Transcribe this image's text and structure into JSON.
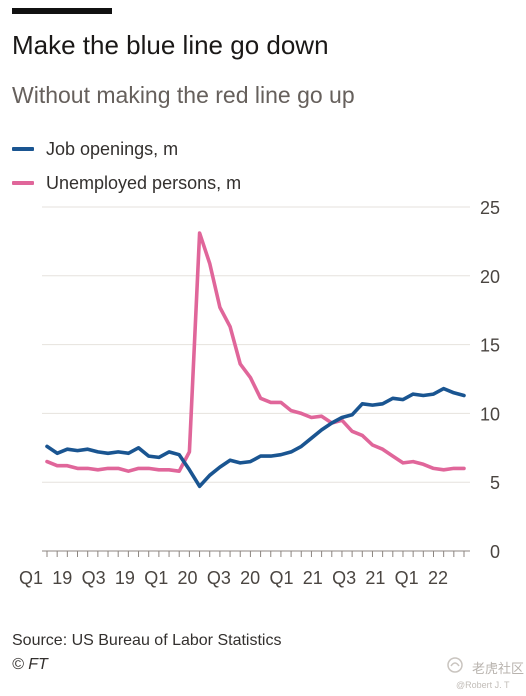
{
  "title": "Make the blue line go down",
  "subtitle": "Without making the red line go up",
  "source": "Source: US Bureau of Labor Statistics",
  "credit": "© FT",
  "watermark": {
    "text": "老虎社区",
    "sub": "@Robert J. T"
  },
  "colors": {
    "job_openings": "#1a5591",
    "unemployed": "#e0669a",
    "grid": "#e6e2dd",
    "background": "#ffffff"
  },
  "chart_data": {
    "type": "line",
    "title": "Make the blue line go down",
    "subtitle": "Without making the red line go up",
    "xlabel": "",
    "ylabel": "",
    "ylim": [
      0,
      25
    ],
    "y_ticks": [
      0,
      5,
      10,
      15,
      20,
      25
    ],
    "y_axis_side": "right",
    "x_tick_labels": [
      "Q1",
      "19",
      "Q3",
      "19",
      "Q1",
      "20",
      "Q3",
      "20",
      "Q1",
      "21",
      "Q3",
      "21",
      "Q1",
      "22"
    ],
    "x": [
      "2019-01",
      "2019-02",
      "2019-03",
      "2019-04",
      "2019-05",
      "2019-06",
      "2019-07",
      "2019-08",
      "2019-09",
      "2019-10",
      "2019-11",
      "2019-12",
      "2020-01",
      "2020-02",
      "2020-03",
      "2020-04",
      "2020-05",
      "2020-06",
      "2020-07",
      "2020-08",
      "2020-09",
      "2020-10",
      "2020-11",
      "2020-12",
      "2021-01",
      "2021-02",
      "2021-03",
      "2021-04",
      "2021-05",
      "2021-06",
      "2021-07",
      "2021-08",
      "2021-09",
      "2021-10",
      "2021-11",
      "2021-12",
      "2022-01",
      "2022-02",
      "2022-03",
      "2022-04",
      "2022-05",
      "2022-06"
    ],
    "grid": true,
    "legend": "top-left",
    "series": [
      {
        "name": "Job openings, m",
        "color": "#1a5591",
        "values": [
          7.6,
          7.1,
          7.4,
          7.3,
          7.4,
          7.2,
          7.1,
          7.2,
          7.1,
          7.5,
          6.9,
          6.8,
          7.2,
          7.0,
          5.9,
          4.7,
          5.5,
          6.1,
          6.6,
          6.4,
          6.5,
          6.9,
          6.9,
          7.0,
          7.2,
          7.6,
          8.2,
          8.8,
          9.3,
          9.7,
          9.9,
          10.7,
          10.6,
          10.7,
          11.1,
          11.0,
          11.4,
          11.3,
          11.4,
          11.8,
          11.5,
          11.3
        ]
      },
      {
        "name": "Unemployed persons, m",
        "color": "#e0669a",
        "values": [
          6.5,
          6.2,
          6.2,
          6.0,
          6.0,
          5.9,
          6.0,
          6.0,
          5.8,
          6.0,
          6.0,
          5.9,
          5.9,
          5.8,
          7.2,
          23.1,
          20.9,
          17.7,
          16.3,
          13.6,
          12.6,
          11.1,
          10.8,
          10.8,
          10.2,
          10.0,
          9.7,
          9.8,
          9.3,
          9.5,
          8.7,
          8.4,
          7.7,
          7.4,
          6.9,
          6.4,
          6.5,
          6.3,
          6.0,
          5.9,
          6.0,
          6.0
        ]
      }
    ]
  }
}
